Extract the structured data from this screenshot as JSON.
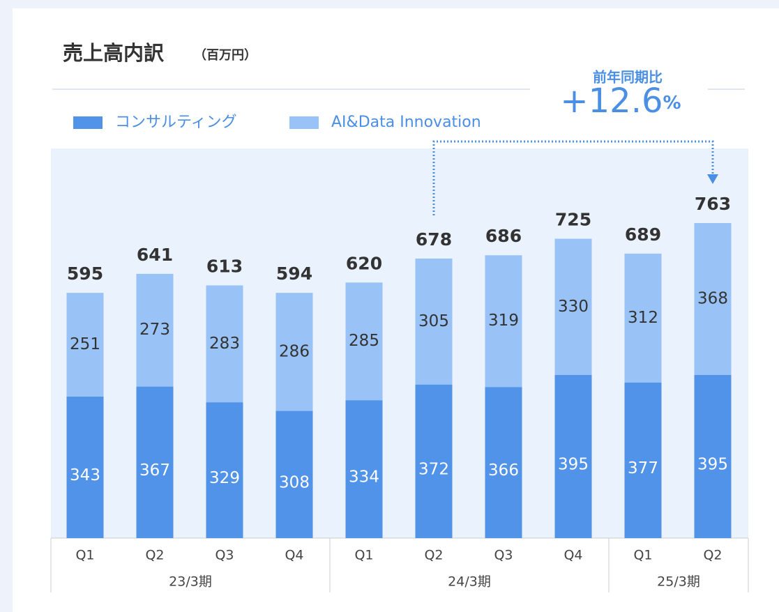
{
  "chart_data": {
    "type": "bar",
    "stacked": true,
    "title": "売上高内訳",
    "unit": "（百万円）",
    "annotation": {
      "label": "前年同期比",
      "value": "+12.6",
      "unit": "%"
    },
    "groups": [
      {
        "name": "23/3期",
        "categories": [
          "Q1",
          "Q2",
          "Q3",
          "Q4"
        ]
      },
      {
        "name": "24/3期",
        "categories": [
          "Q1",
          "Q2",
          "Q3",
          "Q4"
        ]
      },
      {
        "name": "25/3期",
        "categories": [
          "Q1",
          "Q2"
        ]
      }
    ],
    "series": [
      {
        "name": "コンサルティング",
        "color": "#5093e8",
        "values": [
          343,
          367,
          329,
          308,
          334,
          372,
          366,
          395,
          377,
          395
        ]
      },
      {
        "name": "AI&Data Innovation",
        "color": "#99c3f6",
        "values": [
          251,
          273,
          283,
          286,
          285,
          305,
          319,
          330,
          312,
          368
        ]
      }
    ],
    "totals": [
      595,
      641,
      613,
      594,
      620,
      678,
      686,
      725,
      689,
      763
    ]
  }
}
